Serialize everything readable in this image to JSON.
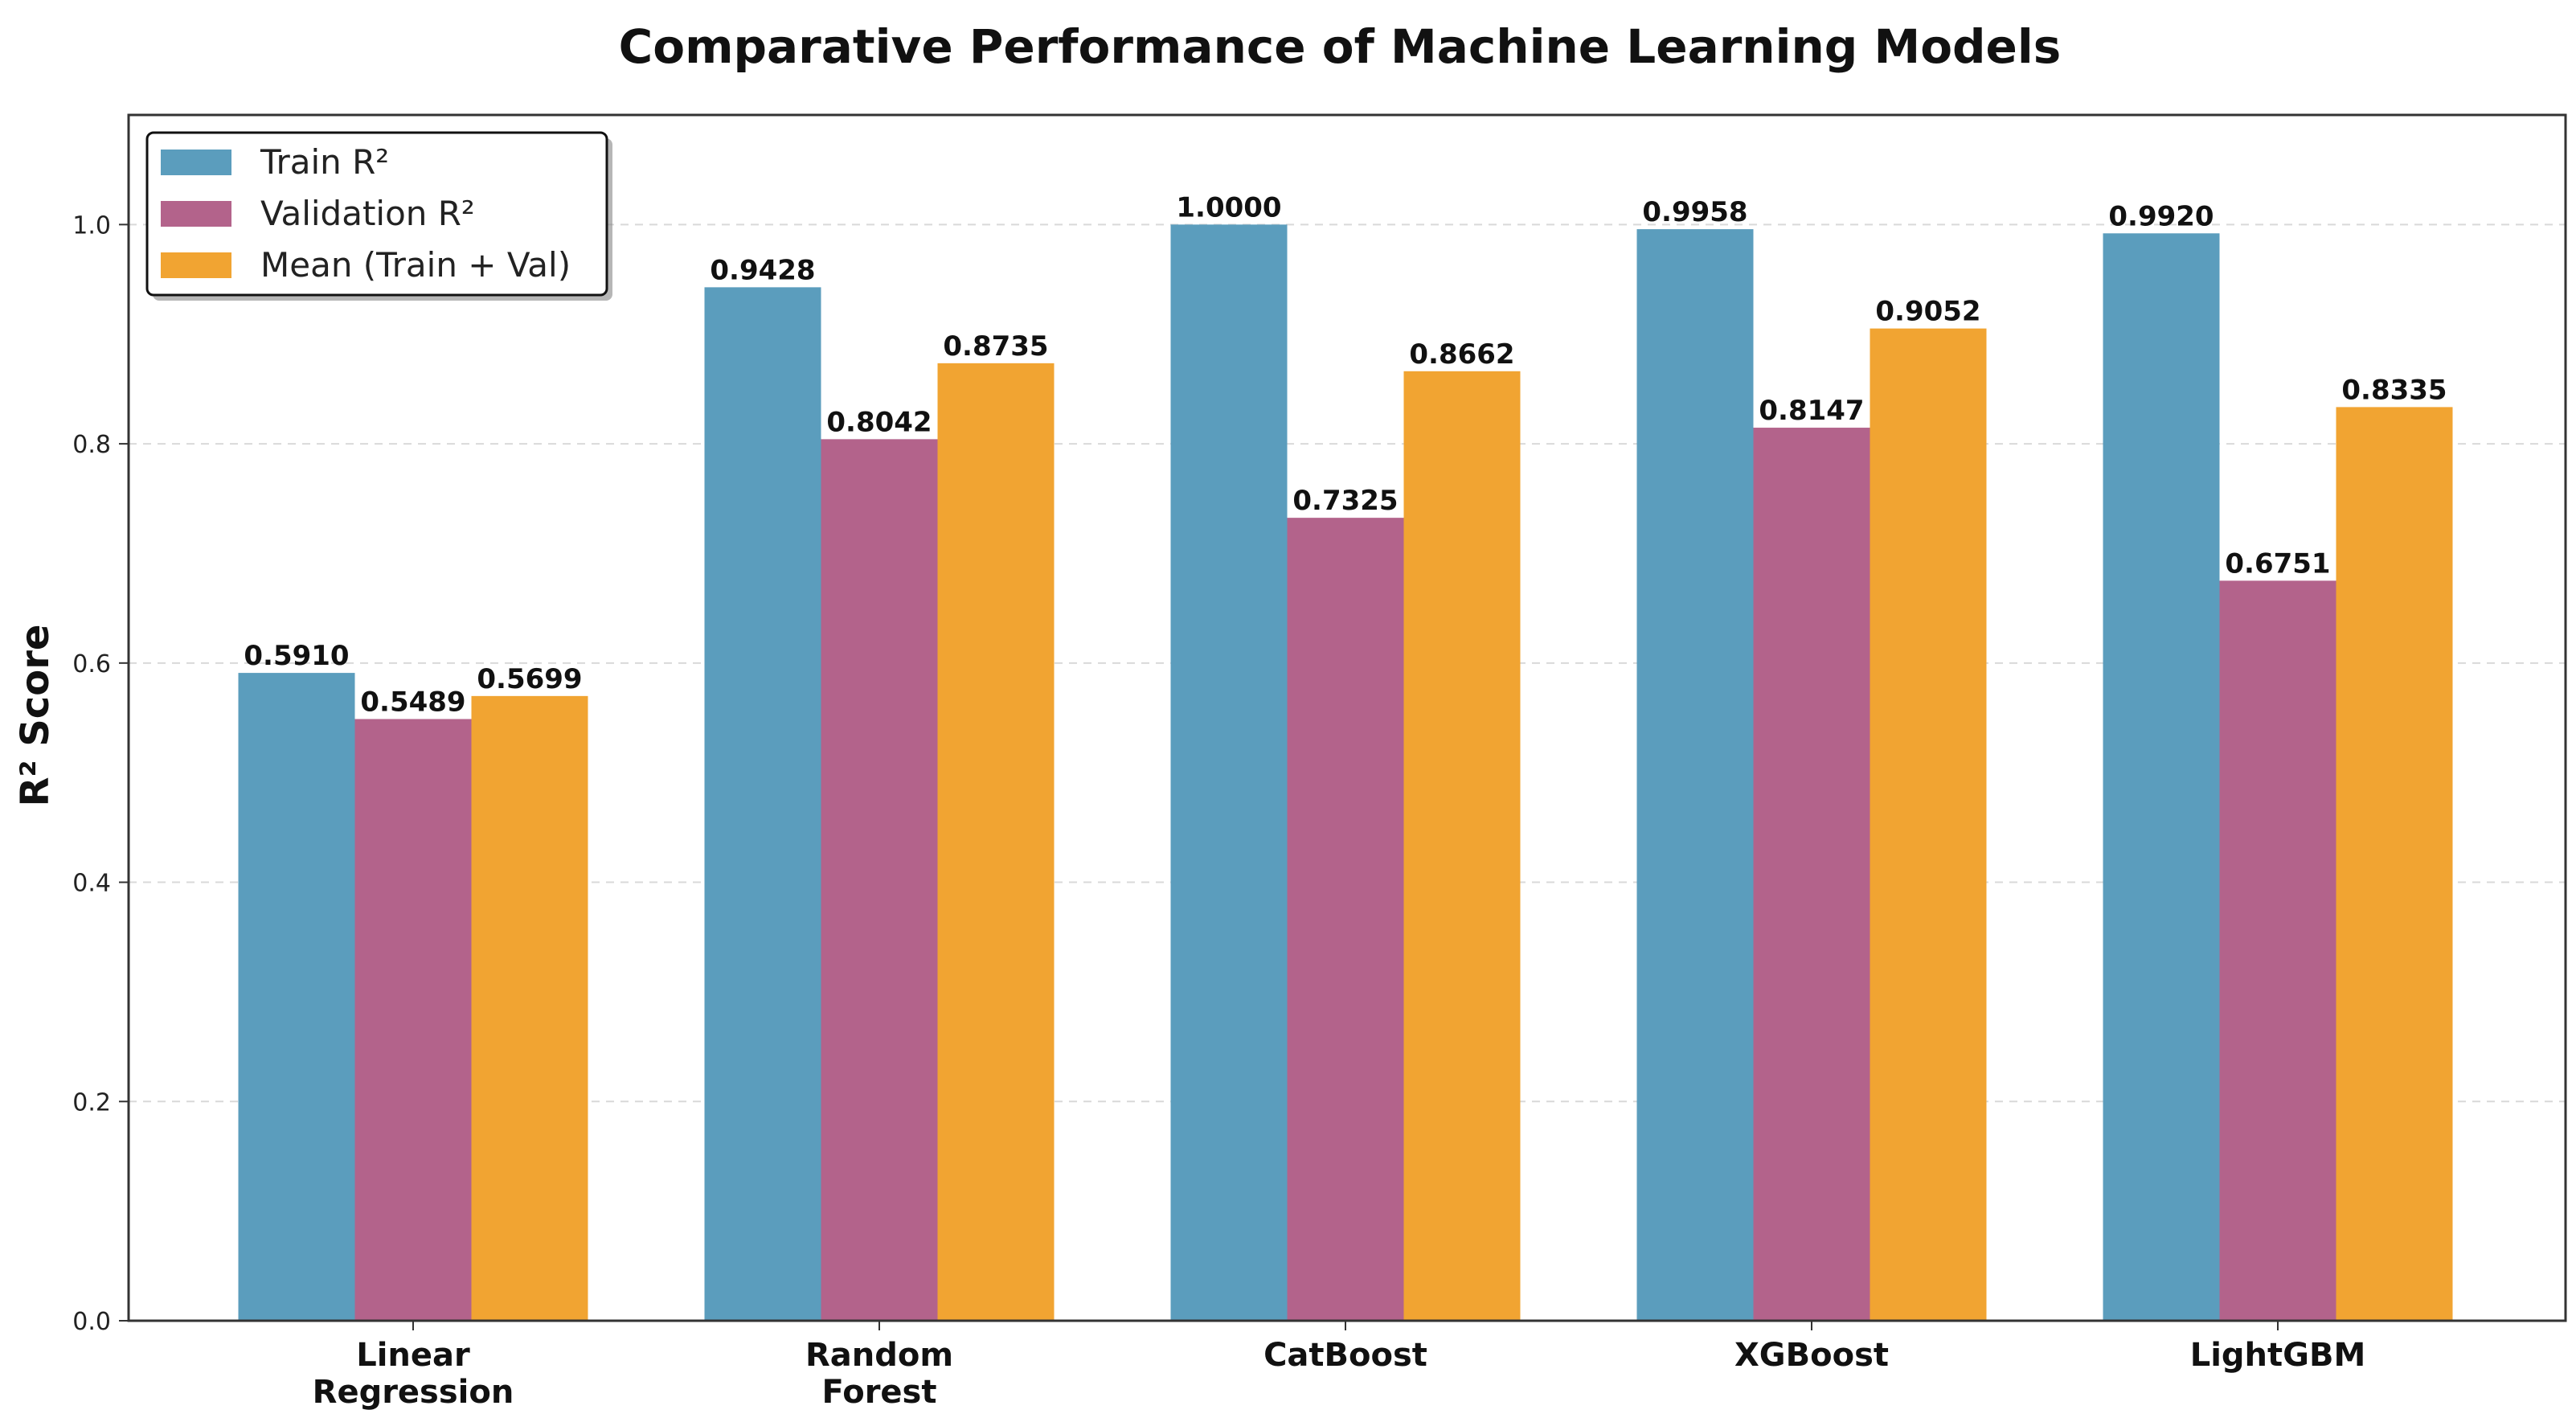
{
  "chart_data": {
    "type": "bar",
    "title": "Comparative Performance of Machine Learning Models",
    "xlabel": "",
    "ylabel": "R² Score",
    "ylim": [
      0,
      1.1
    ],
    "yticks": [
      "0.0",
      "0.2",
      "0.4",
      "0.6",
      "0.8",
      "1.0"
    ],
    "grid": "horizontal dashed",
    "legend_position": "top-left",
    "categories": [
      [
        "Linear",
        "Regression"
      ],
      [
        "Random",
        "Forest"
      ],
      [
        "CatBoost"
      ],
      [
        "XGBoost"
      ],
      [
        "LightGBM"
      ]
    ],
    "series": [
      {
        "name": "Train R²",
        "color": "#5b9dbd",
        "values": [
          0.591,
          0.9428,
          1.0,
          0.9958,
          0.992
        ],
        "labels": [
          "0.5910",
          "0.9428",
          "1.0000",
          "0.9958",
          "0.9920"
        ]
      },
      {
        "name": "Validation R²",
        "color": "#b3638b",
        "values": [
          0.5489,
          0.8042,
          0.7325,
          0.8147,
          0.6751
        ],
        "labels": [
          "0.5489",
          "0.8042",
          "0.7325",
          "0.8147",
          "0.6751"
        ]
      },
      {
        "name": "Mean (Train + Val)",
        "color": "#f1a432",
        "values": [
          0.5699,
          0.8735,
          0.8662,
          0.9052,
          0.8335
        ],
        "labels": [
          "0.5699",
          "0.8735",
          "0.8662",
          "0.9052",
          "0.8335"
        ]
      }
    ]
  }
}
